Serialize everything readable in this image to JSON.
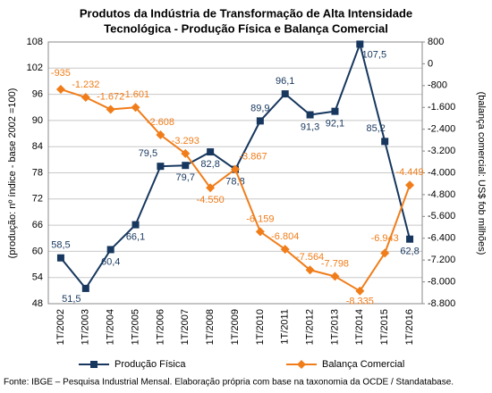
{
  "chart_data": {
    "type": "line",
    "title": [
      "Produtos da Indústria de Transformação de Alta Intensidade",
      "Tecnológica - Produção Física e Balança Comercial"
    ],
    "y_label": "(produção: nº índice - base 2002 =100)",
    "y2_label": "(balança comercial: US$ fob milhões)",
    "source": "Fonte: IBGE – Pesquisa Industrial Mensal. Elaboração própria com base na taxonomia da OCDE / Standatabase.",
    "categories": [
      "1T/2002",
      "1T/2003",
      "1T/2004",
      "1T/2005",
      "1T/2006",
      "1T/2007",
      "1T/2008",
      "1T/2009",
      "1T/2010",
      "1T/2011",
      "1T/2012",
      "1T/2013",
      "1T/2014",
      "1T/2015",
      "1T/2016"
    ],
    "series": [
      {
        "name": "Produção Física",
        "color": "#17375e",
        "marker": "square",
        "values": [
          58.5,
          51.5,
          60.4,
          66.1,
          79.5,
          79.7,
          82.8,
          78.8,
          89.9,
          96.1,
          91.3,
          92.1,
          107.5,
          85.2,
          62.8
        ],
        "value_labels": [
          "58,5",
          "51,5",
          "60,4",
          "66,1",
          "79,5",
          "79,7",
          "82,8",
          "78,8",
          "89,9",
          "96,1",
          "91,3",
          "92,1",
          "107,5",
          "85,2",
          "62,8"
        ]
      },
      {
        "name": "Balança Comercial",
        "color": "#f07d1a",
        "marker": "diamond",
        "axis": "y2",
        "values": [
          -935,
          -1232,
          -1672,
          -1601,
          -2608,
          -3293,
          -4550,
          -3867,
          -6159,
          -6804,
          -7564,
          -7798,
          -8335,
          -6943,
          -4449
        ],
        "value_labels": [
          "-935",
          "-1.232",
          "-1.672",
          "-1.601",
          "-2.608",
          "-3.293",
          "-4.550",
          "-3.867",
          "-6.159",
          "-6.804",
          "-7.564",
          "-7.798",
          "-8.335",
          "-6.943",
          "-4.449"
        ]
      }
    ],
    "ylim": [
      48,
      108
    ],
    "yticks": [
      48,
      54,
      60,
      66,
      72,
      78,
      84,
      90,
      96,
      102,
      108
    ],
    "y2lim": [
      -8800,
      800
    ],
    "y2ticks": [
      {
        "value": -8800,
        "label": "-8.800"
      },
      {
        "value": -8000,
        "label": "-8.000"
      },
      {
        "value": -7200,
        "label": "-7.200"
      },
      {
        "value": -6400,
        "label": "-6.400"
      },
      {
        "value": -5600,
        "label": "-5.600"
      },
      {
        "value": -4800,
        "label": "-4.800"
      },
      {
        "value": -4000,
        "label": "-4.000"
      },
      {
        "value": -3200,
        "label": "-3.200"
      },
      {
        "value": -2400,
        "label": "-2.400"
      },
      {
        "value": -1600,
        "label": "-1.600"
      },
      -800,
      0,
      800
    ],
    "grid": true,
    "legend": "bottom"
  }
}
